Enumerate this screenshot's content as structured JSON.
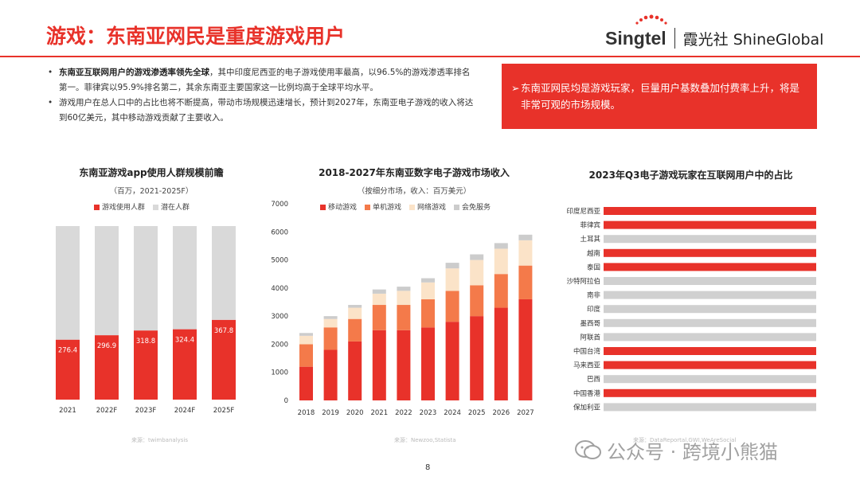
{
  "header": {
    "title": "游戏：东南亚网民是重度游戏用户",
    "logo_brand": "Singtel",
    "logo_partner": "霞光社",
    "logo_partner_en": "ShineGlobal"
  },
  "bullets": [
    {
      "bold": "东南亚互联网用户的游戏渗透率领先全球",
      "text": "，其中印度尼西亚的电子游戏使用率最高，以96.5%的游戏渗透率排名第一。菲律宾以95.9%排名第二，其余东南亚主要国家这一比例均高于全球平均水平。"
    },
    {
      "bold": "",
      "text": "游戏用户在总人口中的占比也将不断提高，带动市场规模迅速增长，预计到2027年，东南亚电子游戏的收入将达到60亿美元，其中移动游戏贡献了主要收入。"
    }
  ],
  "callout": {
    "arrow": "➢",
    "text": "东南亚网民均是游戏玩家，巨量用户基数叠加付费率上升，将是非常可观的市场规模。"
  },
  "colors": {
    "accent": "#e8322a",
    "orange": "#f47a4a",
    "peach": "#fbe3c8",
    "gray": "#d9d9d9",
    "gray_bar": "#cfcfcf"
  },
  "chart_data": [
    {
      "type": "bar",
      "title": "东南亚游戏app使用人群规模前瞻",
      "subtitle": "（百万，2021-2025F）",
      "categories": [
        "2021",
        "2022F",
        "2023F",
        "2024F",
        "2025F"
      ],
      "series": [
        {
          "name": "游戏使用人群",
          "values": [
            276.4,
            296.9,
            318.8,
            324.4,
            367.8
          ],
          "color": "#e8322a"
        },
        {
          "name": "潜在人群",
          "values": [
            523.6,
            503.1,
            481.2,
            475.6,
            432.2
          ],
          "color": "#d9d9d9"
        }
      ],
      "stacked": true,
      "ylim": [
        0,
        800
      ],
      "labels": [
        "276.4",
        "296.9",
        "318.8",
        "324.4",
        "367.8"
      ],
      "legend": "top",
      "source": "来源：twimbanalysis"
    },
    {
      "type": "bar",
      "title": "2018-2027年东南亚数字电子游戏市场收入",
      "subtitle": "（按细分市场，收入：百万美元）",
      "categories": [
        "2018",
        "2019",
        "2020",
        "2021",
        "2022",
        "2023",
        "2024",
        "2025",
        "2026",
        "2027"
      ],
      "series": [
        {
          "name": "移动游戏",
          "values": [
            1200,
            1800,
            2100,
            2500,
            2500,
            2600,
            2800,
            3000,
            3300,
            3600
          ],
          "color": "#e8322a"
        },
        {
          "name": "单机游戏",
          "values": [
            800,
            800,
            800,
            900,
            900,
            1000,
            1100,
            1100,
            1200,
            1200
          ],
          "color": "#f47a4a"
        },
        {
          "name": "网络游戏",
          "values": [
            300,
            300,
            400,
            400,
            500,
            600,
            800,
            900,
            900,
            900
          ],
          "color": "#fbe3c8"
        },
        {
          "name": "会免服务",
          "values": [
            100,
            100,
            100,
            150,
            150,
            150,
            200,
            200,
            200,
            200
          ],
          "color": "#cccccc"
        }
      ],
      "stacked": true,
      "ylim": [
        0,
        7000
      ],
      "yticks": [
        "0",
        "1000",
        "2000",
        "3000",
        "4000",
        "5000",
        "6000",
        "7000"
      ],
      "legend": "top",
      "source": "来源：Newzoo,Statista"
    },
    {
      "type": "bar",
      "orientation": "horizontal",
      "title": "2023年Q3电子游戏玩家在互联网用户中的占比",
      "categories": [
        "印度尼西亚",
        "菲律宾",
        "土耳其",
        "越南",
        "泰国",
        "沙特阿拉伯",
        "南非",
        "印度",
        "墨西哥",
        "阿联酋",
        "中国台湾",
        "马来西亚",
        "巴西",
        "中国香港",
        "保加利亚"
      ],
      "values": [
        97,
        96,
        95,
        93,
        93,
        92,
        92,
        92,
        91,
        91,
        91,
        90,
        89,
        89,
        88
      ],
      "labels": [
        "97%",
        "96%",
        "95%",
        "93%",
        "93%",
        "92%",
        "92%",
        "92%",
        "91%",
        "91%",
        "91%",
        "90%",
        "89%",
        "89%",
        "88%"
      ],
      "highlight": [
        "印度尼西亚",
        "菲律宾",
        "越南",
        "泰国",
        "中国台湾",
        "马来西亚",
        "中国香港"
      ],
      "source": "来源：DataReportal,GWI,WeAreSocial"
    }
  ],
  "footer": {
    "page": "8",
    "watermark": "公众号 · 跨境小熊猫"
  }
}
